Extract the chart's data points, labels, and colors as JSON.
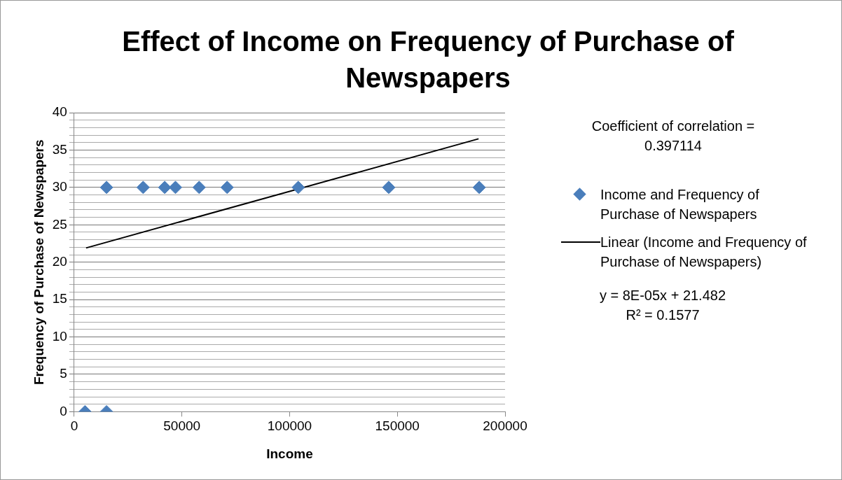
{
  "chart_data": {
    "type": "scatter",
    "title": "Effect of Income on Frequency of Purchase of Newspapers",
    "xlabel": "Income",
    "ylabel": "Frequency of Purchase of Newspapers",
    "series": [
      {
        "name": "Income and Frequency of Purchase of Newspapers",
        "type": "scatter",
        "marker": "diamond",
        "color": "#4a7ebb",
        "x": [
          5000,
          15000,
          15000,
          32000,
          42000,
          47000,
          58000,
          71000,
          104000,
          146000,
          188000
        ],
        "values": [
          0,
          0,
          30,
          30,
          30,
          30,
          30,
          30,
          30,
          30,
          30
        ]
      },
      {
        "name": "Linear (Income and Frequency of Purchase of Newspapers)",
        "type": "line",
        "marker": "none",
        "line_style": "solid",
        "color": "#000000",
        "x": [
          5500,
          187700
        ],
        "values": [
          21.9,
          36.5
        ]
      }
    ],
    "xlim": [
      0,
      200000
    ],
    "xticks": [
      0,
      50000,
      100000,
      150000,
      200000
    ],
    "ylim": [
      0,
      40
    ],
    "yticks": [
      0,
      {
        "value": 1,
        "label": null
      },
      {
        "value": 2,
        "label": null
      },
      {
        "value": 3,
        "label": null
      },
      {
        "value": 4,
        "label": null
      },
      5,
      {
        "value": 6,
        "label": null
      },
      {
        "value": 7,
        "label": null
      },
      {
        "value": 8,
        "label": null
      },
      {
        "value": 9,
        "label": null
      },
      10,
      {
        "value": 11,
        "label": null
      },
      {
        "value": 12,
        "label": null
      },
      {
        "value": 13,
        "label": null
      },
      {
        "value": 14,
        "label": null
      },
      15,
      {
        "value": 16,
        "label": null
      },
      {
        "value": 17,
        "label": null
      },
      {
        "value": 18,
        "label": null
      },
      {
        "value": 19,
        "label": null
      },
      20,
      {
        "value": 21,
        "label": null
      },
      {
        "value": 22,
        "label": null
      },
      {
        "value": 23,
        "label": null
      },
      {
        "value": 24,
        "label": null
      },
      25,
      {
        "value": 26,
        "label": null
      },
      {
        "value": 27,
        "label": null
      },
      {
        "value": 28,
        "label": null
      },
      {
        "value": 29,
        "label": null
      },
      30,
      {
        "value": 31,
        "label": null
      },
      {
        "value": 32,
        "label": null
      },
      {
        "value": 33,
        "label": null
      },
      {
        "value": 34,
        "label": null
      },
      35,
      {
        "value": 36,
        "label": null
      },
      {
        "value": 37,
        "label": null
      },
      {
        "value": 38,
        "label": null
      },
      {
        "value": 39,
        "label": null
      },
      40
    ],
    "grid": "y",
    "legend": "right",
    "annotations": [
      "Coefficient of correlation = 0.397114",
      "y = 8E-05x + 21.482",
      "R² = 0.1577"
    ]
  }
}
